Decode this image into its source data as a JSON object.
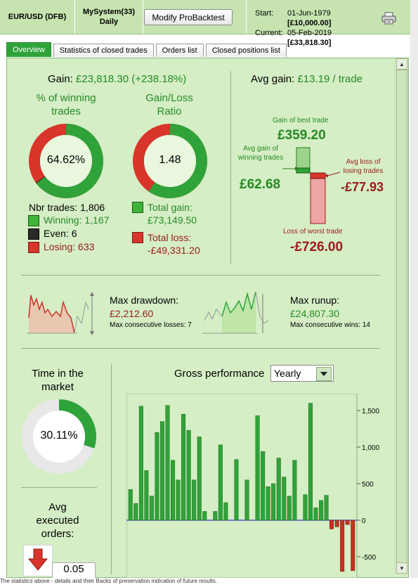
{
  "header": {
    "instrument": "EUR/USD (DFB)",
    "system_name": "MySystem(33)",
    "timeframe": "Daily",
    "modify_button": "Modify ProBacktest",
    "start_label": "Start:",
    "start_date": "01-Jun-1979",
    "start_capital": "[£10,000.00]",
    "current_label": "Current:",
    "current_date": "05-Feb-2019",
    "current_capital": "[£33,818.30]"
  },
  "tabs": [
    {
      "label": "Overview",
      "active": true
    },
    {
      "label": "Statistics of closed trades",
      "active": false
    },
    {
      "label": "Orders list",
      "active": false
    },
    {
      "label": "Closed positions list",
      "active": false
    }
  ],
  "overview": {
    "gain_label": "Gain:",
    "gain_value": "£23,818.30 (+238.18%)",
    "winning_title": "% of winning trades",
    "winning_pct": "64.62%",
    "winning_fraction": 0.6462,
    "even_fraction": 0.0033,
    "ratio_title": "Gain/Loss Ratio",
    "ratio_value": "1.48",
    "ratio_gain_fraction": 0.597,
    "nbr_trades_label": "Nbr trades:",
    "nbr_trades": "1,806",
    "winning_label": "Winning:",
    "winning": "1,167",
    "even_label": "Even:",
    "even": "6",
    "losing_label": "Losing:",
    "losing": "633",
    "total_gain_label": "Total gain:",
    "total_gain": "£73,149.50",
    "total_loss_label": "Total loss:",
    "total_loss": "-£49,331.20",
    "avg_gain_label": "Avg gain:",
    "avg_gain_value": "£13.19 / trade",
    "best_trade_label": "Gain of best trade",
    "best_trade": "£359.20",
    "avg_win_label": "Avg gain of winning trades",
    "avg_win": "£62.68",
    "avg_loss_label": "Avg loss of losing trades",
    "avg_loss": "-£77.93",
    "worst_trade_label": "Loss of worst trade",
    "worst_trade": "-£726.00",
    "max_drawdown_label": "Max drawdown:",
    "max_drawdown": "£2,212.60",
    "max_cons_losses": "Max consecutive losses: 7",
    "max_runup_label": "Max runup:",
    "max_runup": "£24,807.30",
    "max_cons_wins": "Max consecutive wins: 14",
    "time_market_title": "Time in the market",
    "time_market_pct": "30.11%",
    "time_market_fraction": 0.3011,
    "avg_exec_title": "Avg executed orders:",
    "avg_exec_value": "0.05",
    "gross_perf_label": "Gross performance",
    "period_selected": "Yearly"
  },
  "colors": {
    "win_green": "#2fa33a",
    "loss_red": "#d8352b",
    "panel_bg": "#d5eec5",
    "header_bg": "#c6e3b0"
  },
  "chart_data": {
    "type": "bar",
    "title": "Gross performance",
    "ylim": [
      -700,
      1700
    ],
    "yticks": [
      "1,500",
      "1,000",
      "500",
      "0",
      "-500"
    ],
    "ytick_values": [
      1500,
      1000,
      500,
      0,
      -500
    ],
    "values": [
      420,
      230,
      1560,
      680,
      330,
      1200,
      1350,
      1570,
      820,
      550,
      1450,
      1230,
      550,
      1140,
      120,
      0,
      120,
      1030,
      240,
      0,
      830,
      0,
      550,
      0,
      1430,
      940,
      460,
      500,
      850,
      590,
      330,
      820,
      0,
      350,
      1600,
      170,
      270,
      340,
      -120,
      -90,
      -700,
      -60,
      -690
    ]
  },
  "footer": {
    "text": "The statistics above - details and their Backs of preservation indication of future results."
  }
}
